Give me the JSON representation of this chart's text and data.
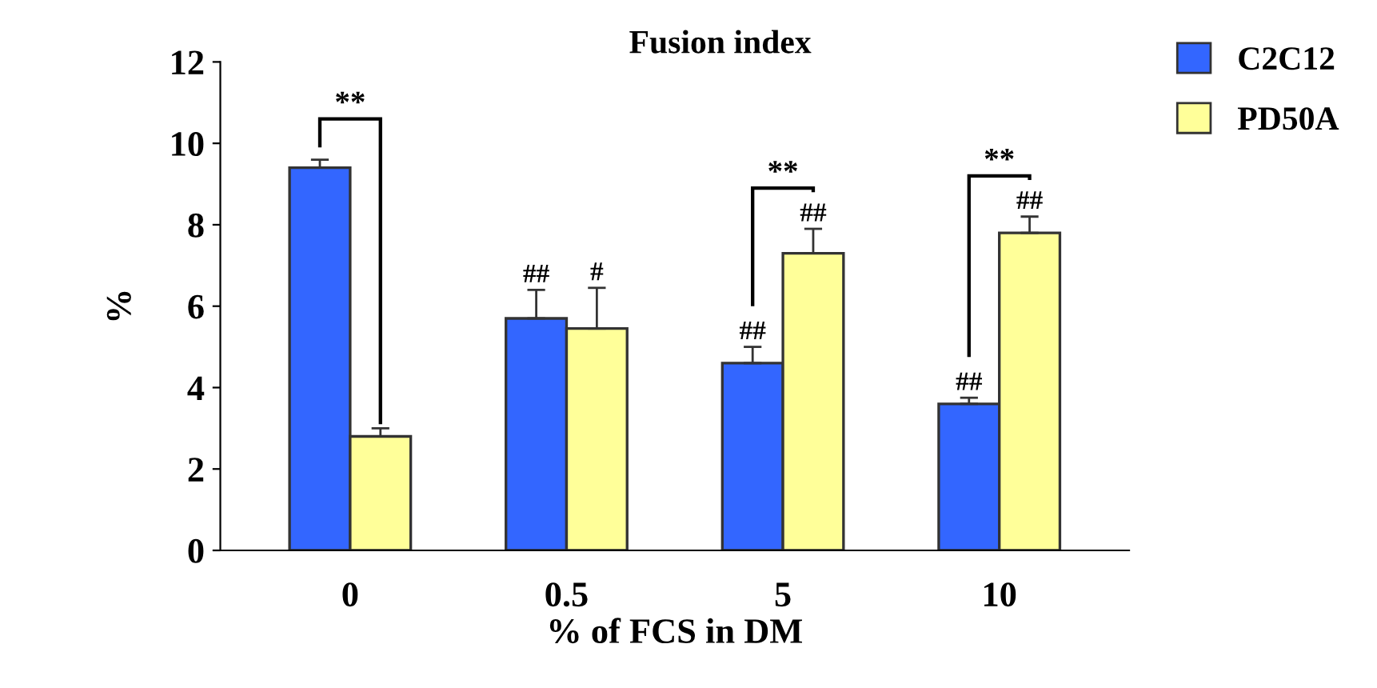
{
  "chart_data": {
    "type": "bar",
    "title": "Fusion index",
    "xlabel": "% of FCS in DM",
    "ylabel": "%",
    "categories": [
      "0",
      "0.5",
      "5",
      "10"
    ],
    "series": [
      {
        "name": "C2C12",
        "color": "#3366ff",
        "values": [
          9.4,
          5.7,
          4.6,
          3.6
        ],
        "errors": [
          0.2,
          0.7,
          0.4,
          0.15
        ]
      },
      {
        "name": "PD50A",
        "color": "#ffff99",
        "values": [
          2.8,
          5.45,
          7.3,
          7.8
        ],
        "errors": [
          0.2,
          1.0,
          0.6,
          0.4
        ]
      }
    ],
    "annotations": [
      "**",
      "##",
      "#",
      "**",
      "##",
      "##",
      "**",
      "##",
      "##"
    ],
    "ylim": [
      0,
      12
    ],
    "yticks": [
      0,
      2,
      4,
      6,
      8,
      10,
      12
    ],
    "grid": false,
    "legend": "top right"
  }
}
